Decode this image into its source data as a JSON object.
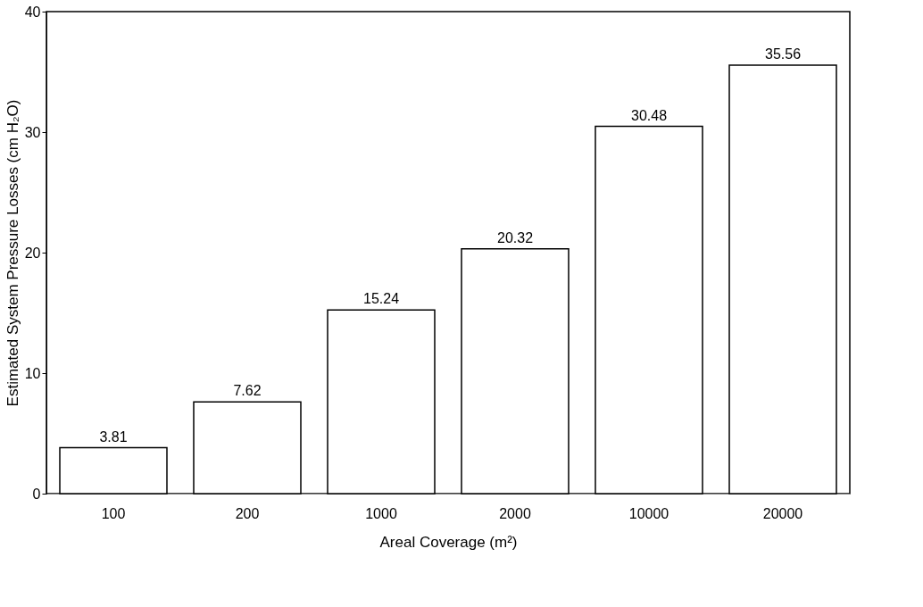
{
  "chart_data": {
    "type": "bar",
    "xlabel": "Areal Coverage (m²)",
    "ylabel": "Estimated System Pressure Losses (cm H₂O)",
    "categories": [
      "100",
      "200",
      "1000",
      "2000",
      "10000",
      "20000"
    ],
    "values": [
      3.81,
      7.62,
      15.24,
      20.32,
      30.48,
      35.56
    ],
    "color": "#ffffff",
    "ylim": [
      0,
      40
    ],
    "yticks": [
      0,
      10,
      20,
      30,
      40
    ],
    "data_labels": true
  }
}
